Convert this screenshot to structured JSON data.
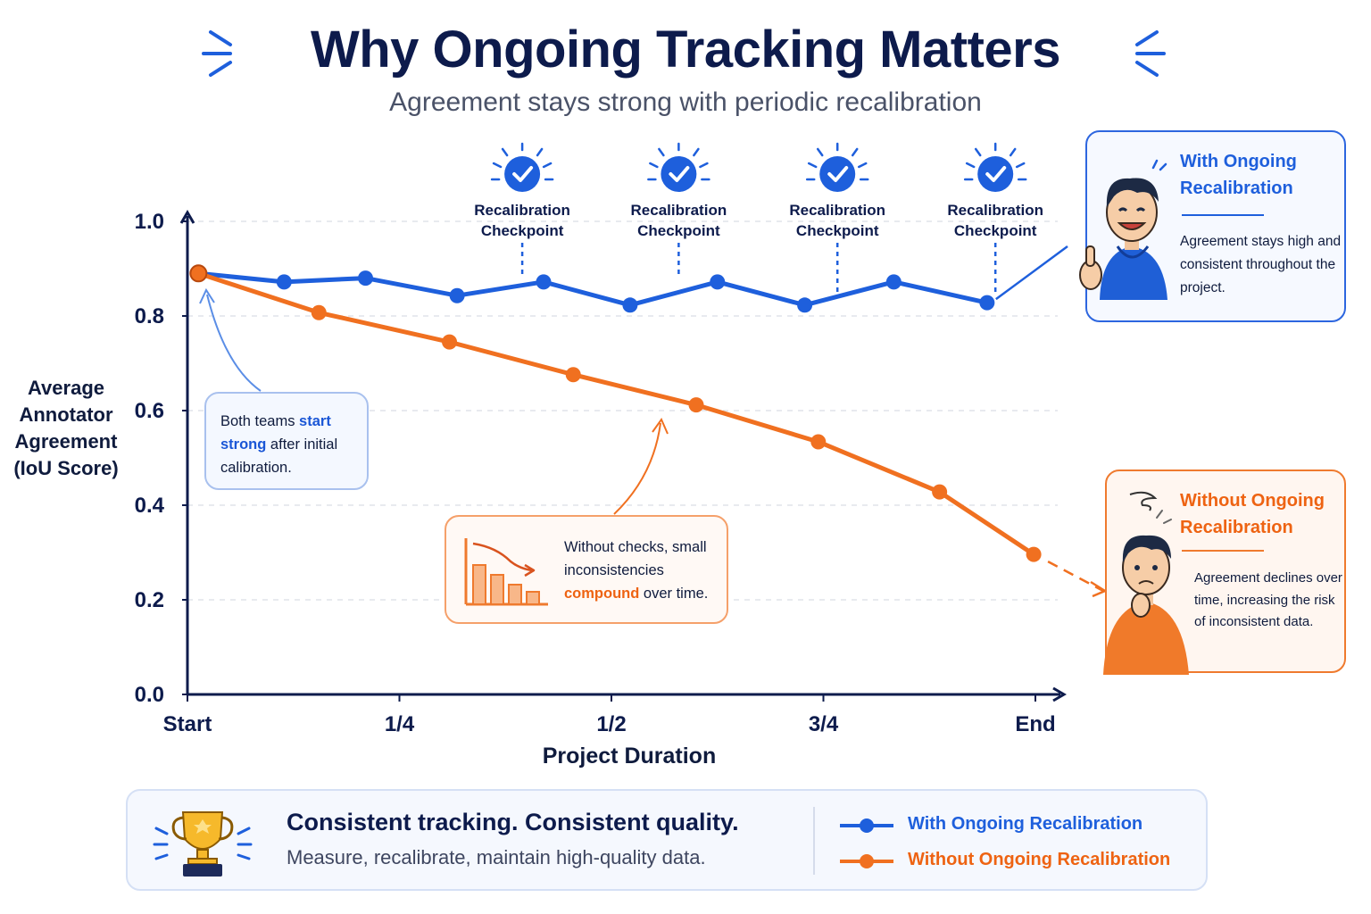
{
  "header": {
    "title": "Why Ongoing Tracking Matters",
    "subtitle": "Agreement stays strong with periodic recalibration"
  },
  "colors": {
    "blue": "#1e5fdc",
    "orange": "#f07020",
    "navy": "#0d1b4c",
    "grid": "#e1e4ea"
  },
  "checkpoints": {
    "line1": "Recalibration",
    "line2": "Checkpoint",
    "icon": "check-circle-icon"
  },
  "chart_data": {
    "type": "line",
    "xlabel": "Project Duration",
    "ylabel": [
      "Average",
      "Annotator",
      "Agreement",
      "(IoU Score)"
    ],
    "ylim": [
      0,
      1.0
    ],
    "yticks": [
      "0.0",
      "0.2",
      "0.4",
      "0.6",
      "0.8",
      "1.0"
    ],
    "xlim": [
      0,
      1
    ],
    "xticks": [
      {
        "pos": 0,
        "label": "Start"
      },
      {
        "pos": 0.25,
        "label": "1/4"
      },
      {
        "pos": 0.5,
        "label": "1/2"
      },
      {
        "pos": 0.75,
        "label": "3/4"
      },
      {
        "pos": 1,
        "label": "End"
      }
    ],
    "grid": true,
    "checkpoint_x": [
      0.42,
      0.625,
      0.833,
      1.04
    ],
    "series": [
      {
        "name": "With Ongoing Recalibration",
        "color": "#1e5fdc",
        "x": [
          0.013,
          0.114,
          0.21,
          0.318,
          0.42,
          0.522,
          0.625,
          0.728,
          0.833,
          0.943
        ],
        "y": [
          0.89,
          0.872,
          0.88,
          0.843,
          0.872,
          0.823,
          0.872,
          0.823,
          0.872,
          0.828
        ]
      },
      {
        "name": "Without Ongoing Recalibration",
        "color": "#f07020",
        "x": [
          0.013,
          0.155,
          0.309,
          0.455,
          0.6,
          0.744,
          0.887,
          0.998
        ],
        "y": [
          0.89,
          0.807,
          0.745,
          0.676,
          0.612,
          0.534,
          0.428,
          0.296
        ]
      }
    ]
  },
  "notes": {
    "start_pre": "Both teams ",
    "start_hl": "start strong",
    "start_post": " after initial calibration.",
    "compound_pre": "Without checks, small inconsistencies ",
    "compound_hl": "compound",
    "compound_post": " over time."
  },
  "side_panels": {
    "with": {
      "title": "With Ongoing Recalibration",
      "body": "Agreement stays high and consistent throughout the project."
    },
    "without": {
      "title": "Without Ongoing Recalibration",
      "body": "Agreement declines over time, increasing the risk of inconsistent data."
    }
  },
  "footer": {
    "headline": "Consistent tracking. Consistent quality.",
    "subline": "Measure, recalibrate, maintain high-quality data.",
    "icon": "trophy-icon"
  },
  "legend": [
    {
      "label": "With Ongoing Recalibration",
      "color": "#1e5fdc"
    },
    {
      "label": "Without Ongoing Recalibration",
      "color": "#f07020"
    }
  ]
}
